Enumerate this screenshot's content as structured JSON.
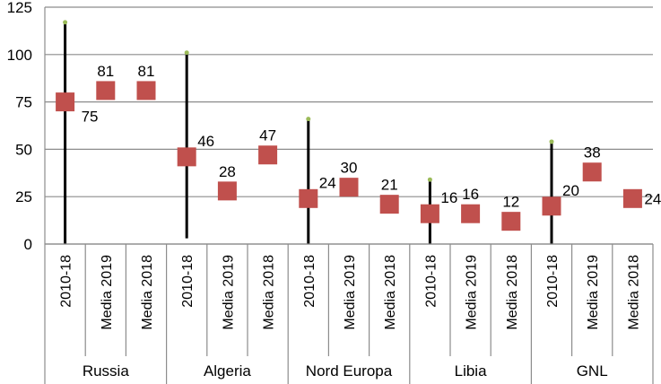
{
  "chart_data": {
    "type": "scatter",
    "title": "",
    "xlabel": "",
    "ylabel": "",
    "ylim": [
      0,
      125
    ],
    "yticks": [
      0,
      25,
      50,
      75,
      100,
      125
    ],
    "grid": true,
    "legend": "none",
    "groups": [
      {
        "name": "Russia",
        "categories": [
          "2010-18",
          "Media 2019",
          "Media 2018"
        ],
        "values": [
          75,
          81,
          81
        ],
        "range": [
          0,
          117
        ]
      },
      {
        "name": "Algeria",
        "categories": [
          "2010-18",
          "Media 2019",
          "Media 2018"
        ],
        "values": [
          46,
          28,
          47
        ],
        "range": [
          3,
          101
        ]
      },
      {
        "name": "Nord Europa",
        "categories": [
          "2010-18",
          "Media 2019",
          "Media 2018"
        ],
        "values": [
          24,
          30,
          21
        ],
        "range": [
          0,
          66
        ]
      },
      {
        "name": "Libia",
        "categories": [
          "2010-18",
          "Media 2019",
          "Media 2018"
        ],
        "values": [
          16,
          16,
          12
        ],
        "range": [
          0,
          34
        ]
      },
      {
        "name": "GNL",
        "categories": [
          "2010-18",
          "Media 2019",
          "Media 2018"
        ],
        "values": [
          20,
          38,
          24
        ],
        "range": [
          0,
          54
        ]
      }
    ],
    "colors": {
      "marker": "#c0504d",
      "range_line": "#000000",
      "range_cap": "#9bbb59",
      "grid": "#8c8c8c"
    }
  }
}
